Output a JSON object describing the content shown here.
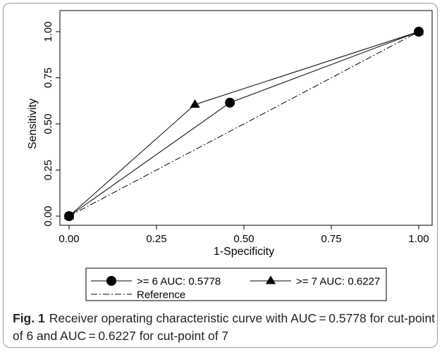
{
  "chart_data": {
    "type": "line",
    "xlabel": "1-Specificity",
    "ylabel": "Sensitivity",
    "xlim": [
      0,
      1
    ],
    "ylim": [
      0,
      1
    ],
    "x_ticks": [
      "0.00",
      "0.25",
      "0.50",
      "0.75",
      "1.00"
    ],
    "y_ticks": [
      "0.00",
      "0.25",
      "0.50",
      "0.75",
      "1.00"
    ],
    "grid": false,
    "legend_position": "bottom",
    "series": [
      {
        "name": ">= 6 AUC: 0.5778",
        "marker": "circle",
        "x": [
          0,
          0.46,
          1
        ],
        "y": [
          0,
          0.615,
          1
        ]
      },
      {
        "name": ">= 7 AUC: 0.6227",
        "marker": "triangle",
        "x": [
          0,
          0.36,
          1
        ],
        "y": [
          0,
          0.605,
          1
        ]
      },
      {
        "name": "Reference",
        "marker": "none",
        "line_style": "dash-dot",
        "x": [
          0,
          1
        ],
        "y": [
          0,
          1
        ]
      }
    ]
  },
  "caption": {
    "label": "Fig. 1",
    "text": "Receiver operating characteristic curve with AUC = 0.5778 for cut-point of 6 and AUC = 0.6227 for cut-point of 7"
  }
}
